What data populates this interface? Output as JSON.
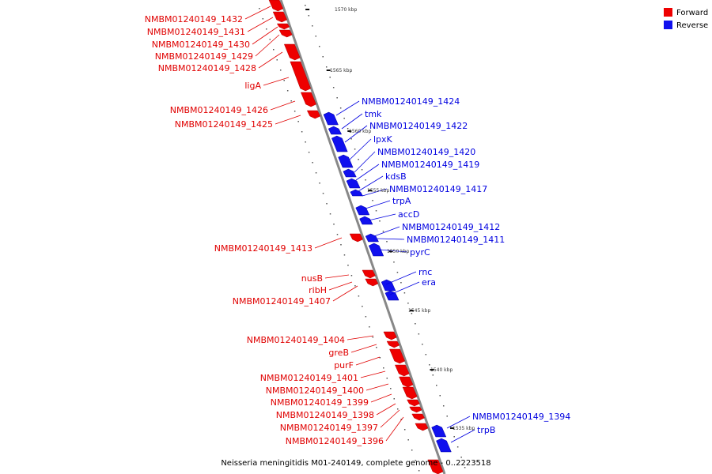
{
  "legend": [
    {
      "label": "Forward",
      "color": "#ee0000"
    },
    {
      "label": "Reverse",
      "color": "#1010ee"
    }
  ],
  "caption": "Neisseria meningitidis M01-240149, complete genome - 0..2223518",
  "ticks": [
    "1570 kbp",
    "1565 kbp",
    "1560 kbp",
    "1555 kbp",
    "1550 kbp",
    "1545 kbp",
    "1540 kbp",
    "1535 kbp"
  ],
  "forward_labels": [
    "NMBM01240149_1432",
    "NMBM01240149_1431",
    "NMBM01240149_1430",
    "NMBM01240149_1429",
    "NMBM01240149_1428",
    "ligA",
    "NMBM01240149_1426",
    "NMBM01240149_1425",
    "NMBM01240149_1413",
    "nusB",
    "ribH",
    "NMBM01240149_1407",
    "NMBM01240149_1404",
    "greB",
    "purF",
    "NMBM01240149_1401",
    "NMBM01240149_1400",
    "NMBM01240149_1399",
    "NMBM01240149_1398",
    "NMBM01240149_1397",
    "NMBM01240149_1396"
  ],
  "reverse_labels": [
    "NMBM01240149_1424",
    "tmk",
    "NMBM01240149_1422",
    "lpxK",
    "NMBM01240149_1420",
    "NMBM01240149_1419",
    "kdsB",
    "NMBM01240149_1417",
    "trpA",
    "accD",
    "NMBM01240149_1412",
    "NMBM01240149_1411",
    "pyrC",
    "rnc",
    "era",
    "NMBM01240149_1394",
    "trpB"
  ]
}
